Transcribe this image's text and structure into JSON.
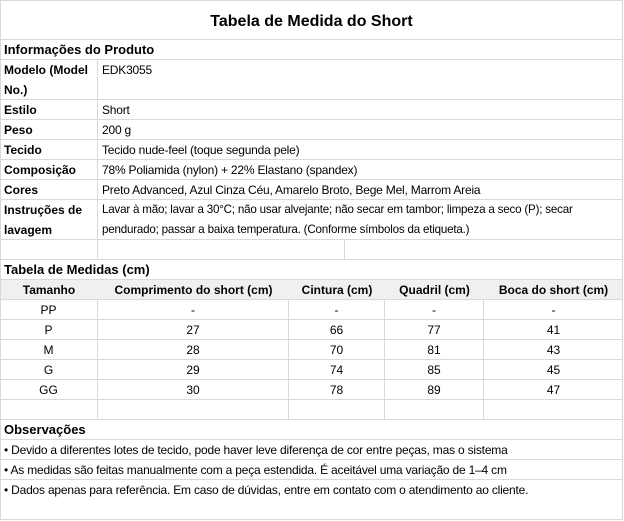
{
  "title": "Tabela de Medida do Short",
  "product_info": {
    "heading": "Informações do Produto",
    "rows": [
      {
        "label": "Modelo (Model No.)",
        "value": "EDK3055"
      },
      {
        "label": "Estilo",
        "value": "Short"
      },
      {
        "label": "Peso",
        "value": "200 g"
      },
      {
        "label": "Tecido",
        "value": "Tecido nude-feel (toque segunda pele)"
      },
      {
        "label": "Composição",
        "value": "78% Poliamida (nylon) + 22% Elastano (spandex)"
      },
      {
        "label": "Cores",
        "value": "Preto Advanced, Azul Cinza Céu, Amarelo Broto, Bege Mel, Marrom Areia"
      },
      {
        "label": "Instruções de lavagem",
        "value": "Lavar à mão; lavar a 30°C; não usar alvejante; não secar em tambor; limpeza a seco (P); secar pendurado; passar a baixa temperatura. (Conforme símbolos da etiqueta.)"
      }
    ]
  },
  "measurements": {
    "heading": "Tabela de Medidas (cm)",
    "columns": [
      "Tamanho",
      "Comprimento do short (cm)",
      "Cintura (cm)",
      "Quadril (cm)",
      "Boca do short (cm)"
    ],
    "rows": [
      [
        "PP",
        "-",
        "-",
        "-",
        "-"
      ],
      [
        "P",
        "27",
        "66",
        "77",
        "41"
      ],
      [
        "M",
        "28",
        "70",
        "81",
        "43"
      ],
      [
        "G",
        "29",
        "74",
        "85",
        "45"
      ],
      [
        "GG",
        "30",
        "78",
        "89",
        "47"
      ]
    ]
  },
  "notes": {
    "heading": "Observações",
    "items": [
      "• Devido a diferentes lotes de tecido, pode haver leve diferença de cor entre peças, mas o sistema",
      "• As medidas são feitas manualmente com a peça estendida. É aceitável uma variação de 1–4 cm",
      "• Dados apenas para referência. Em caso de dúvidas, entre em contato com o atendimento ao cliente."
    ]
  }
}
